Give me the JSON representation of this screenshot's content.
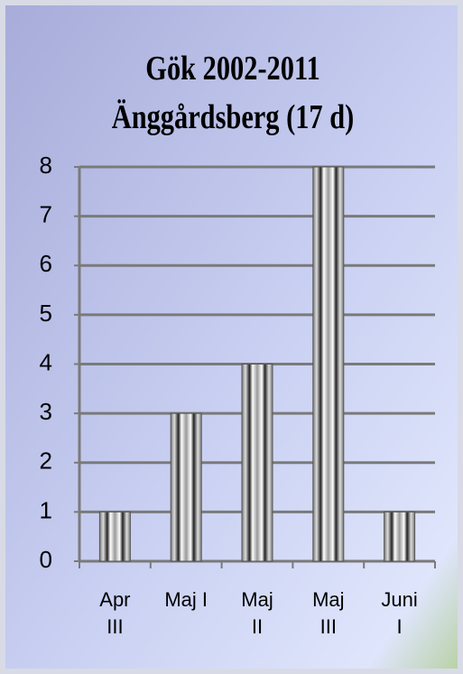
{
  "chart_data": {
    "type": "bar",
    "title": "Gök 2002-2011\nÄnggårdsberg (17 d)",
    "categories": [
      "Apr\nIII",
      "Maj I",
      "Maj\nII",
      "Maj\nIII",
      "Juni\nI"
    ],
    "values": [
      1,
      3,
      4,
      8,
      1
    ],
    "ylim": [
      0,
      8
    ],
    "yticks": [
      0,
      1,
      2,
      3,
      4,
      5,
      6,
      7,
      8
    ],
    "grid": true
  }
}
